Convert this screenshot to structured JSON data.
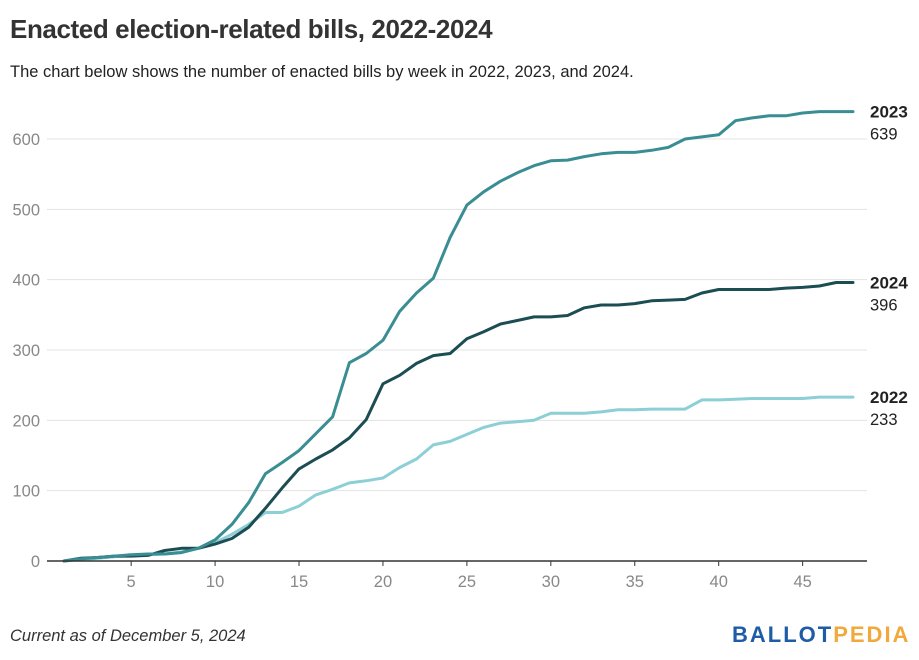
{
  "header": {
    "title": "Enacted election-related bills, 2022-2024",
    "subtitle": "The chart below shows the number of enacted bills by week in 2022, 2023, and 2024."
  },
  "footer": {
    "note": "Current as of December 5, 2024",
    "logo_part1": "BALLOT",
    "logo_part2": "PEDIA"
  },
  "colors": {
    "2022": "#8ccfd6",
    "2023": "#3a8e93",
    "2024": "#1b4d53",
    "grid": "#e3e3e3",
    "axis": "#333333",
    "logo_blue": "#1f5ca8",
    "logo_orange": "#f2a93b"
  },
  "chart_data": {
    "type": "line",
    "xlabel": "",
    "ylabel": "",
    "xlim": [
      1,
      48
    ],
    "ylim": [
      0,
      650
    ],
    "x_ticks": [
      5,
      10,
      15,
      20,
      25,
      30,
      35,
      40,
      45
    ],
    "y_ticks": [
      0,
      100,
      200,
      300,
      400,
      500,
      600
    ],
    "grid": true,
    "legend": "end-of-line labels",
    "x": [
      1,
      2,
      3,
      4,
      5,
      6,
      7,
      8,
      9,
      10,
      11,
      12,
      13,
      14,
      15,
      16,
      17,
      18,
      19,
      20,
      21,
      22,
      23,
      24,
      25,
      26,
      27,
      28,
      29,
      30,
      31,
      32,
      33,
      34,
      35,
      36,
      37,
      38,
      39,
      40,
      41,
      42,
      43,
      44,
      45,
      46,
      47,
      48
    ],
    "series": [
      {
        "name": "2023",
        "end_value": "639",
        "values": [
          0,
          3,
          5,
          7,
          9,
          10,
          10,
          12,
          18,
          30,
          52,
          83,
          124,
          140,
          157,
          181,
          205,
          282,
          295,
          314,
          355,
          381,
          402,
          460,
          506,
          525,
          540,
          552,
          562,
          569,
          570,
          575,
          579,
          581,
          581,
          584,
          588,
          600,
          603,
          606,
          626,
          630,
          633,
          633,
          637,
          639,
          639,
          639
        ]
      },
      {
        "name": "2024",
        "end_value": "396",
        "values": [
          0,
          4,
          5,
          7,
          7,
          8,
          15,
          18,
          18,
          24,
          32,
          48,
          75,
          104,
          131,
          145,
          158,
          175,
          201,
          252,
          264,
          281,
          292,
          295,
          316,
          326,
          337,
          342,
          347,
          347,
          349,
          360,
          364,
          364,
          366,
          370,
          371,
          372,
          381,
          386,
          386,
          386,
          386,
          388,
          389,
          391,
          396,
          396
        ]
      },
      {
        "name": "2022",
        "end_value": "233",
        "values": [
          0,
          2,
          4,
          6,
          8,
          9,
          10,
          13,
          18,
          26,
          38,
          52,
          69,
          69,
          78,
          94,
          102,
          111,
          114,
          118,
          133,
          145,
          165,
          170,
          180,
          190,
          196,
          198,
          200,
          210,
          210,
          210,
          212,
          215,
          215,
          216,
          216,
          216,
          229,
          229,
          230,
          231,
          231,
          231,
          231,
          233,
          233,
          233
        ]
      }
    ]
  }
}
